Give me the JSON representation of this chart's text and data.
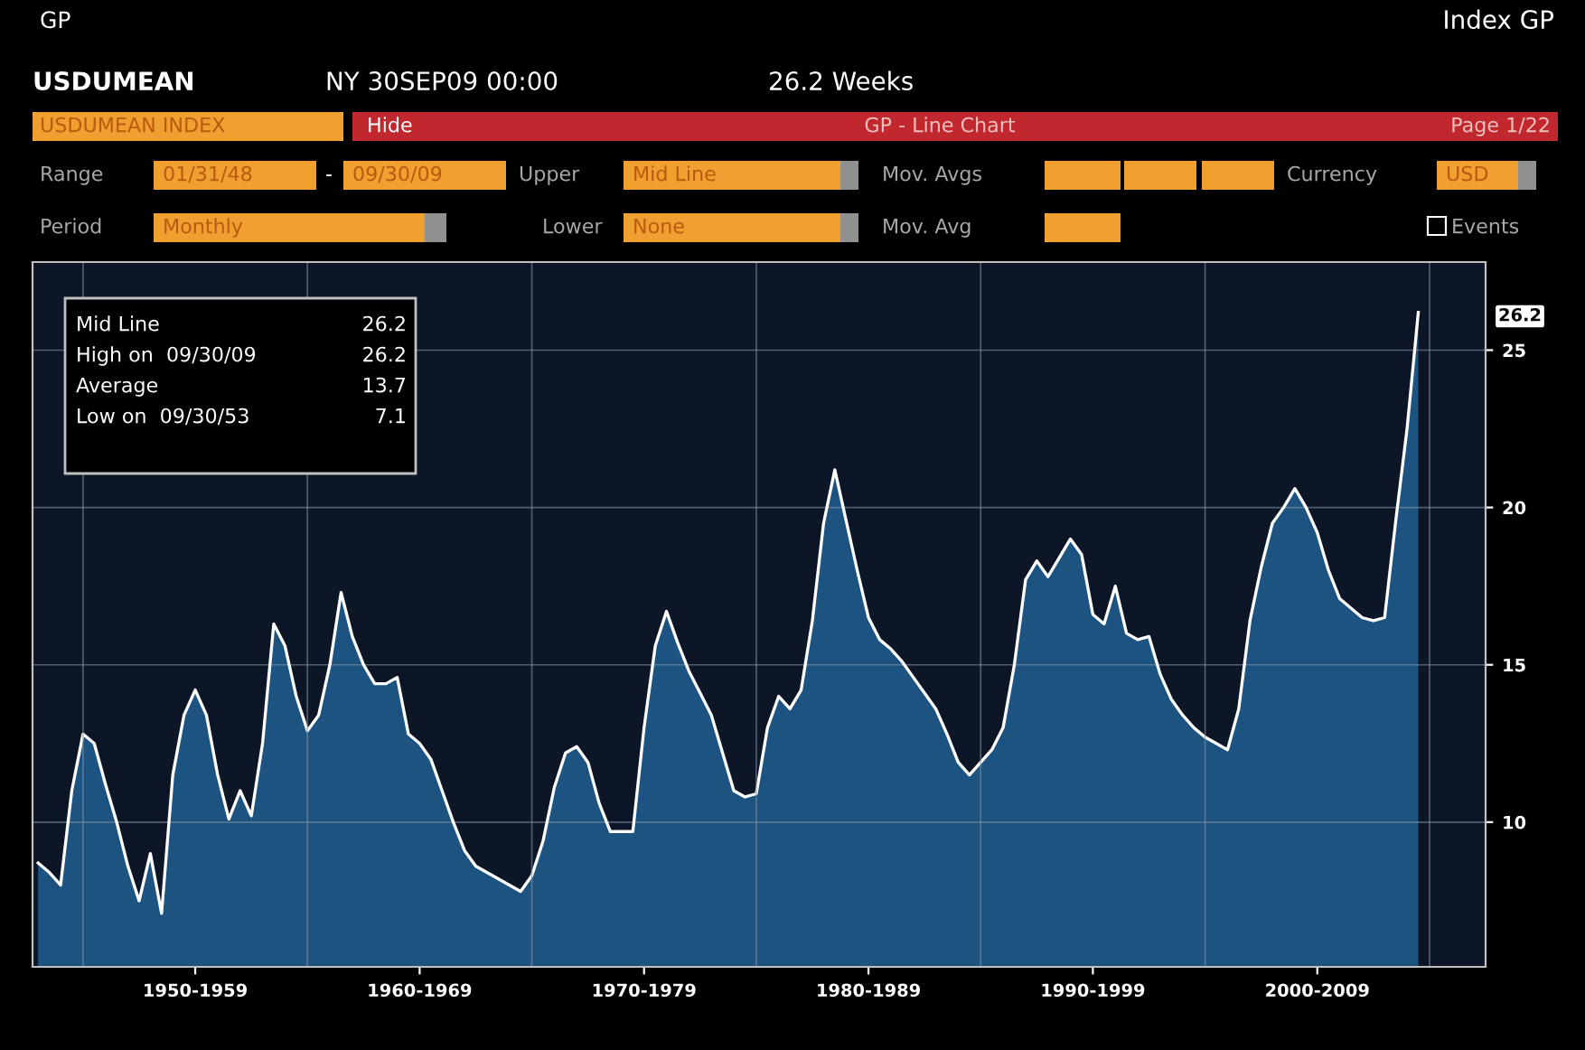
{
  "chart_data": {
    "type": "area",
    "categories": [
      null,
      null,
      null,
      null,
      null,
      null,
      null,
      null,
      null,
      null,
      null,
      null,
      null,
      null,
      "1950-1959",
      null,
      null,
      null,
      null,
      null,
      null,
      null,
      null,
      null,
      null,
      null,
      null,
      null,
      null,
      null,
      null,
      null,
      null,
      null,
      "1960-1969",
      null,
      null,
      null,
      null,
      null,
      null,
      null,
      null,
      null,
      null,
      null,
      null,
      null,
      null,
      null,
      null,
      null,
      null,
      null,
      "1970-1979",
      null,
      null,
      null,
      null,
      null,
      null,
      null,
      null,
      null,
      null,
      null,
      null,
      null,
      null,
      null,
      null,
      null,
      null,
      null,
      "1980-1989",
      null,
      null,
      null,
      null,
      null,
      null,
      null,
      null,
      null,
      null,
      null,
      null,
      null,
      null,
      null,
      null,
      null,
      null,
      null,
      "1990-1999",
      null,
      null,
      null,
      null,
      null,
      null,
      null,
      null,
      null,
      null,
      null,
      null,
      null,
      null,
      null,
      null,
      null,
      null,
      null,
      "2000-2009",
      null,
      null,
      null,
      null,
      null,
      null,
      null,
      null,
      null
    ],
    "series": [
      {
        "color": "#1f5a8c",
        "values": [
          8.7,
          8.4,
          8.0,
          11.0,
          12.8,
          12.5,
          11.2,
          10.0,
          8.6,
          7.5,
          9.0,
          7.1,
          11.5,
          13.4,
          14.2,
          13.4,
          11.5,
          10.1,
          11.0,
          10.2,
          12.5,
          16.3,
          15.6,
          14.0,
          12.9,
          13.4,
          15.0,
          17.3,
          15.9,
          15.0,
          14.4,
          14.4,
          14.6,
          12.8,
          12.5,
          12.0,
          11.0,
          10.0,
          9.1,
          8.6,
          8.4,
          8.2,
          8.0,
          7.8,
          8.3,
          9.4,
          11.1,
          12.2,
          12.4,
          11.9,
          10.6,
          9.7,
          9.7,
          9.7,
          13.0,
          15.6,
          16.7,
          15.7,
          14.8,
          14.1,
          13.4,
          12.2,
          11.0,
          10.8,
          10.9,
          13.0,
          14.0,
          13.6,
          14.2,
          16.4,
          19.5,
          21.2,
          19.6,
          18.0,
          16.5,
          15.8,
          15.5,
          15.1,
          14.6,
          14.1,
          13.6,
          12.8,
          11.9,
          11.5,
          11.9,
          12.3,
          13.0,
          15.0,
          17.7,
          18.3,
          17.8,
          18.4,
          19.0,
          18.5,
          16.6,
          16.3,
          17.5,
          16.0,
          15.8,
          15.9,
          14.7,
          13.9,
          13.4,
          13.0,
          12.7,
          12.5,
          12.3,
          13.6,
          16.4,
          18.1,
          19.5,
          20.0,
          20.6,
          20.0,
          19.2,
          18.0,
          17.1,
          16.8,
          16.5,
          16.4,
          16.5,
          19.6,
          22.5,
          26.2
        ]
      }
    ],
    "ylim": [
      5.4,
      27.8
    ],
    "yticks": [
      10,
      15,
      20,
      25
    ],
    "grid": true,
    "annotations": [
      "GP",
      "Index GP",
      "USDUMEAN",
      "NY 30SEP09 00:00",
      "26.2 Weeks",
      "USDUMEAN INDEX",
      "Hide",
      "GP - Line Chart",
      "Page 1/22",
      "Range",
      "01/31/48",
      "-",
      "09/30/09",
      "Upper",
      "Mid Line",
      "Mov. Avgs",
      "Currency",
      "USD",
      "Period",
      "Monthly",
      "Lower",
      "None",
      "Mov. Avg",
      "Events",
      "Mid Line",
      "26.2",
      "High on  09/30/09",
      "26.2",
      "Average",
      "13.7",
      "Low on  09/30/53",
      "7.1",
      "26.2"
    ]
  }
}
